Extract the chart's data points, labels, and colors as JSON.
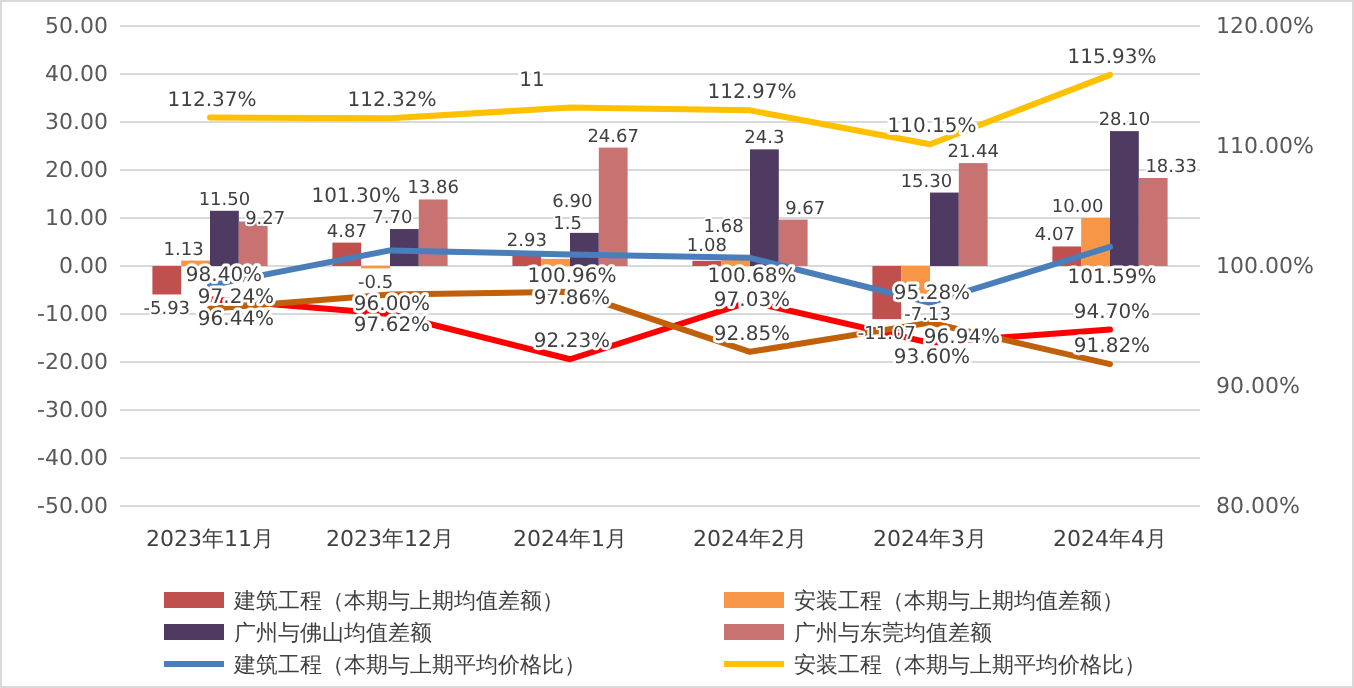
{
  "chart_data": {
    "type": "bar",
    "categories": [
      "2023年11月",
      "2023年12月",
      "2024年1月",
      "2024年2月",
      "2024年3月",
      "2024年4月"
    ],
    "ylim": [
      -50,
      50
    ],
    "yticks": [
      {
        "value": -50,
        "label": "-50.00"
      },
      {
        "value": -40,
        "label": "-40.00"
      },
      {
        "value": -30,
        "label": "-30.00"
      },
      {
        "value": -20,
        "label": "-20.00"
      },
      {
        "value": -10,
        "label": "-10.00"
      },
      {
        "value": 0,
        "label": "0.00"
      },
      {
        "value": 10,
        "label": "10.00"
      },
      {
        "value": 20,
        "label": "20.00"
      },
      {
        "value": 30,
        "label": "30.00"
      },
      {
        "value": 40,
        "label": "40.00"
      },
      {
        "value": 50,
        "label": "50.00"
      }
    ],
    "y2lim": [
      80,
      120
    ],
    "y2ticks": [
      {
        "value": 80,
        "label": "80.00%"
      },
      {
        "value": 90,
        "label": "90.00%"
      },
      {
        "value": 100,
        "label": "100.00%"
      },
      {
        "value": 110,
        "label": "110.00%"
      },
      {
        "value": 120,
        "label": "120.00%"
      }
    ],
    "grid": "y",
    "legend": "bottom",
    "annotations": [
      "11"
    ],
    "series": [
      {
        "name": "建筑工程（本期与上期均值差额）",
        "type": "bar",
        "color": "#c0504d",
        "values": [
          -5.93,
          4.87,
          2.93,
          1.08,
          -11.07,
          4.07
        ],
        "value_labels": [
          "-5.93",
          "4.87",
          "2.93",
          "1.08",
          "-11.07",
          "4.07"
        ]
      },
      {
        "name": "安装工程（本期与上期均值差额）",
        "type": "bar",
        "color": "#f79646",
        "values": [
          1.13,
          -0.5,
          1.5,
          1.68,
          -7.13,
          10.0
        ],
        "value_labels": [
          "1.13",
          "-0.5",
          "1.5",
          "1.68",
          "-7.13",
          "10.00"
        ]
      },
      {
        "name": "广州与佛山均值差额",
        "type": "bar",
        "color": "#4f3b62",
        "values": [
          11.5,
          7.7,
          6.9,
          24.3,
          15.3,
          28.1
        ],
        "value_labels": [
          "11.50",
          "7.70",
          "6.90",
          "24.3",
          "15.30",
          "28.10"
        ]
      },
      {
        "name": "广州与东莞均值差额",
        "type": "bar",
        "color": "#c87272",
        "values": [
          9.27,
          13.86,
          24.67,
          9.67,
          21.44,
          18.33
        ],
        "value_labels": [
          "9.27",
          "13.86",
          "24.67",
          "9.67",
          "21.44",
          "18.33"
        ]
      },
      {
        "name": "建筑工程（本期与上期平均价格比）",
        "type": "line",
        "axis": "y2",
        "color": "#4a7ebb",
        "values": [
          98.4,
          101.3,
          100.96,
          100.68,
          96.94,
          101.59
        ],
        "value_labels": [
          "98.40%",
          "101.30%",
          "100.96%",
          "100.68%",
          "96.94%",
          "101.59%"
        ]
      },
      {
        "name": "安装工程（本期与上期平均价格比）",
        "type": "line",
        "axis": "y2",
        "color": "#ffc000",
        "values": [
          112.37,
          112.32,
          113.2,
          112.97,
          110.15,
          115.93
        ],
        "value_labels": [
          "112.37%",
          "112.32%",
          null,
          "112.97%",
          "110.15%",
          "115.93%"
        ]
      },
      {
        "type": "line",
        "axis": "y2",
        "color": "#ff0000",
        "values": [
          97.24,
          96.0,
          92.23,
          97.03,
          93.6,
          94.7
        ],
        "value_labels": [
          "97.24%",
          "96.00%",
          "92.23%",
          "97.03%",
          "93.60%",
          "94.70%"
        ]
      },
      {
        "type": "line",
        "axis": "y2",
        "color": "#c0600a",
        "values": [
          96.44,
          97.62,
          97.86,
          92.85,
          95.28,
          91.82
        ],
        "value_labels": [
          "96.44%",
          "97.62%",
          "97.86%",
          "92.85%",
          "95.28%",
          "91.82%"
        ]
      }
    ]
  }
}
